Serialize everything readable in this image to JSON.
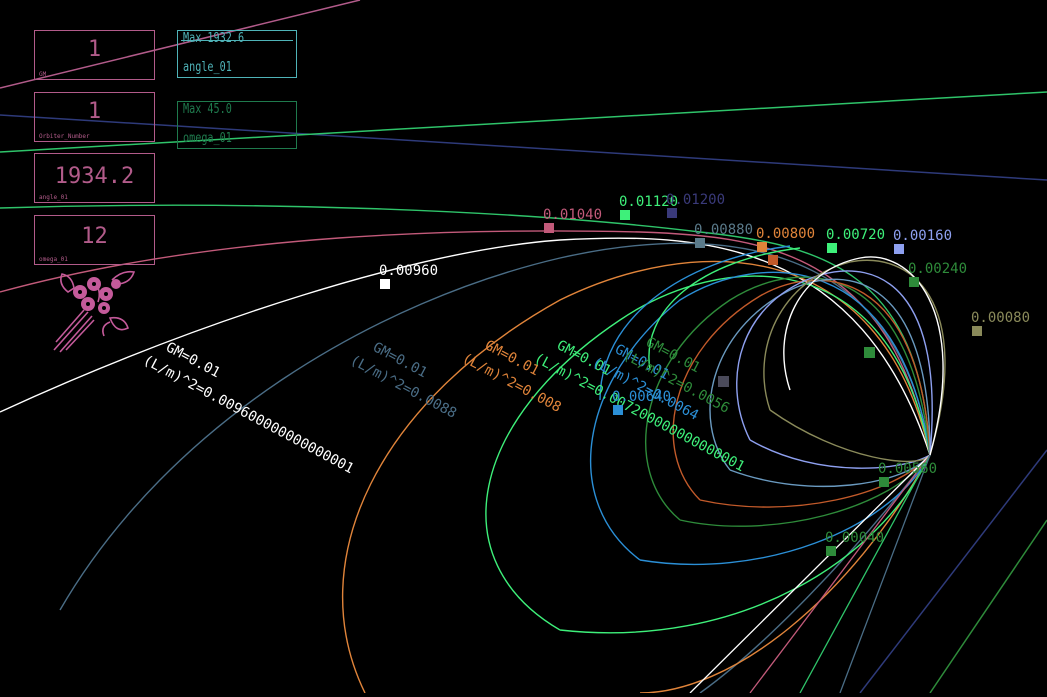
{
  "panels": [
    {
      "value": "1",
      "label": "GM",
      "color": "#b25b8a"
    },
    {
      "value": "1",
      "label": "Orbiter_Number",
      "color": "#b25b8a"
    },
    {
      "value": "1934.2",
      "label": "angle_01",
      "color": "#b25b8a"
    },
    {
      "value": "12",
      "label": "omega_01",
      "color": "#b25b8a"
    }
  ],
  "sliders": [
    {
      "max": "Max 1932.6",
      "name": "angle_01",
      "color": "#4fb3b8"
    },
    {
      "max": "Max 45.0",
      "name": "omega_01",
      "color": "#1f7a4d"
    }
  ],
  "orbit_labels": [
    {
      "gm": "GM=0.01",
      "l2": "(L/m)^2=0.009600000000000001",
      "color": "#ffffff"
    },
    {
      "gm": "GM=0.01",
      "l2": "(L/m)^2=0.0088",
      "color": "#4a6d86"
    },
    {
      "gm": "GM=0.01",
      "l2": "(L/m)^2=0.008",
      "color": "#e0843a"
    },
    {
      "gm": "GM=0.01",
      "l2": "(L/m)^2=0.007200000000000001",
      "color": "#3ef07a"
    },
    {
      "gm": "GM=0.01",
      "l2": "(L/m)^2=0.0064",
      "color": "#2b8fd6"
    },
    {
      "gm": "GM=0.01",
      "l2": "(L/m)^2=0.0056",
      "color": "#2e8b3a"
    }
  ],
  "markers": [
    {
      "label": "0.00960",
      "color": "#ffffff"
    },
    {
      "label": "0.01040",
      "color": "#c25a7a"
    },
    {
      "label": "0.01120",
      "color": "#3ef07a"
    },
    {
      "label": "0.01200",
      "color": "#3a3a7a"
    },
    {
      "label": "0.00880",
      "color": "#5a7a8a"
    },
    {
      "label": "0.00800",
      "color": "#e0843a"
    },
    {
      "label": "0.00720",
      "color": "#3ef07a"
    },
    {
      "label": "0.00160",
      "color": "#8ea0f0"
    },
    {
      "label": "0.00080",
      "color": "#8a8a5a"
    },
    {
      "label": "0.00240",
      "color": "#2e8b3a"
    },
    {
      "label": "0.00640",
      "color": "#2b8fd6"
    },
    {
      "label": "0.00040",
      "color": "#2e8b3a"
    },
    {
      "label": "0.00560",
      "color": "#2e8b3a"
    }
  ],
  "icon": "flower-bouquet-icon"
}
